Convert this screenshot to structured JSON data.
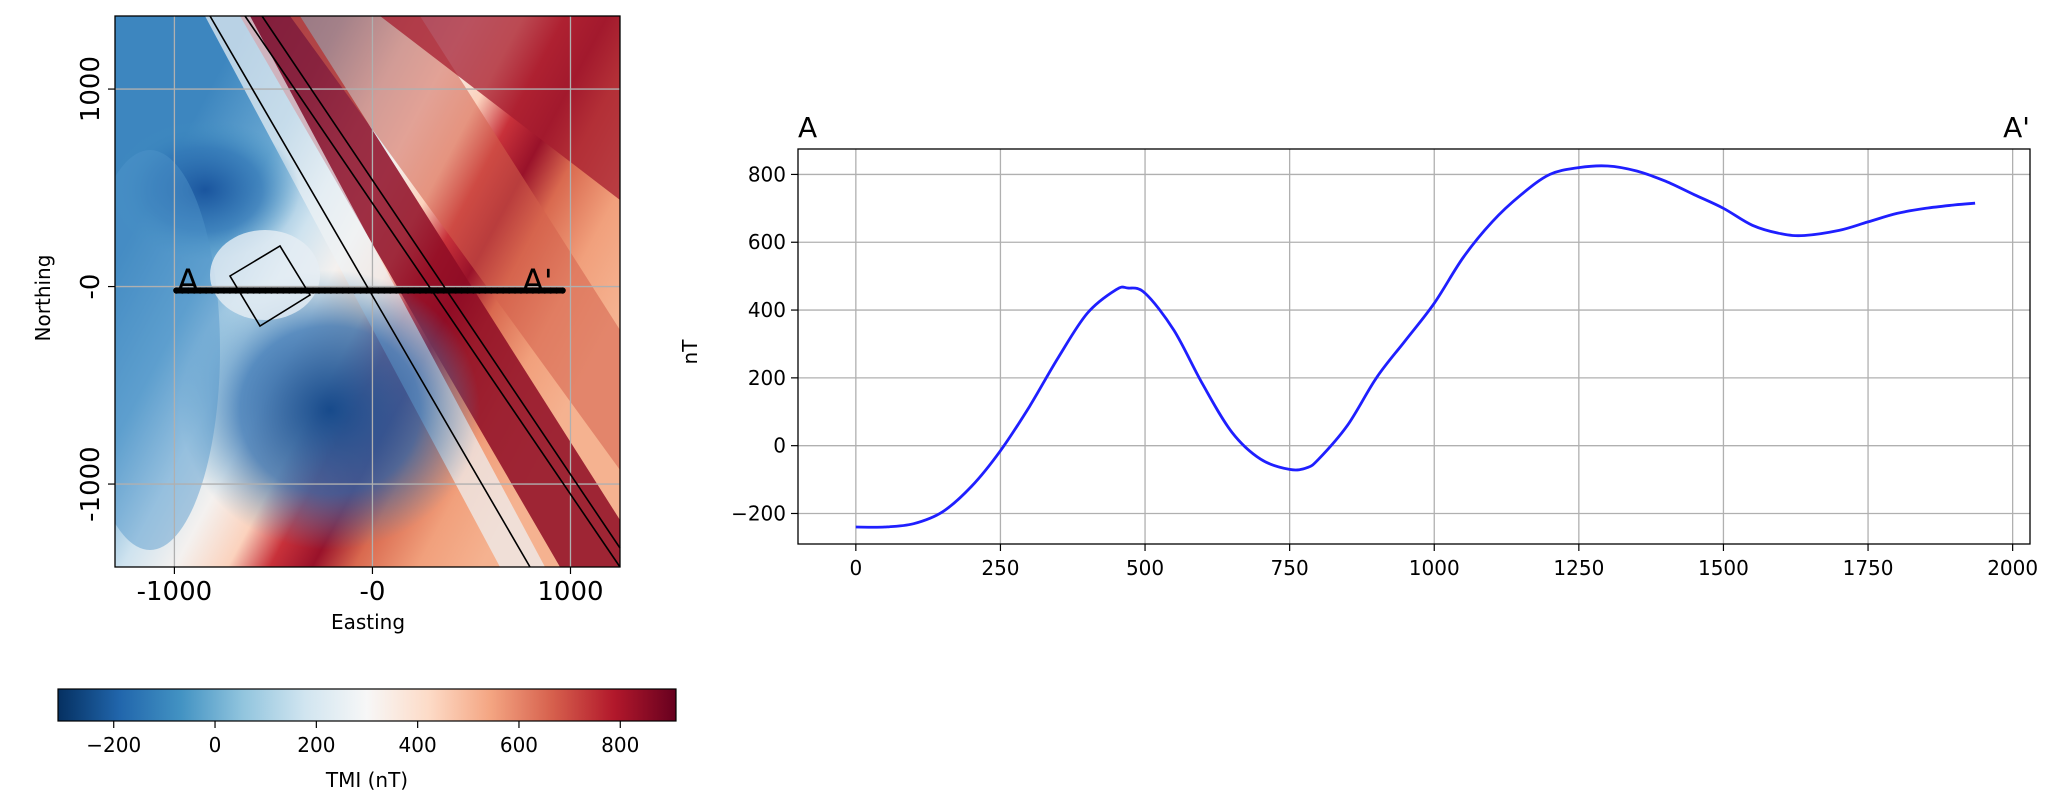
{
  "map": {
    "xlabel": "Easting",
    "ylabel": "Northing",
    "xticks": [
      {
        "value": -1000,
        "label": "-1000"
      },
      {
        "value": 0,
        "label": "-0"
      },
      {
        "value": 1000,
        "label": "1000"
      }
    ],
    "yticks": [
      {
        "value": 1000,
        "label": "1000"
      },
      {
        "value": 0,
        "label": "-0"
      },
      {
        "value": -1000,
        "label": "-1000"
      }
    ],
    "xlim": [
      -1300,
      1250
    ],
    "ylim": [
      -1420,
      1370
    ],
    "profile_start_label": "A",
    "profile_end_label": "A'",
    "profile_line": {
      "x0": -990,
      "x1": 960,
      "y": -20
    },
    "grid": true
  },
  "colorbar": {
    "label": "TMI (nT)",
    "range": [
      -310,
      910
    ],
    "ticks": [
      {
        "value": -200,
        "label": "−200"
      },
      {
        "value": 0,
        "label": "0"
      },
      {
        "value": 200,
        "label": "200"
      },
      {
        "value": 400,
        "label": "400"
      },
      {
        "value": 600,
        "label": "600"
      },
      {
        "value": 800,
        "label": "800"
      }
    ],
    "colormap": "RdBu_r"
  },
  "chart_data": {
    "type": "line",
    "title_left": "A",
    "title_right": "A'",
    "xlabel": "",
    "ylabel": "nT",
    "xlim": [
      -100,
      2030
    ],
    "ylim": [
      -290,
      875
    ],
    "xticks": [
      {
        "value": 0,
        "label": "0"
      },
      {
        "value": 250,
        "label": "250"
      },
      {
        "value": 500,
        "label": "500"
      },
      {
        "value": 750,
        "label": "750"
      },
      {
        "value": 1000,
        "label": "1000"
      },
      {
        "value": 1250,
        "label": "1250"
      },
      {
        "value": 1500,
        "label": "1500"
      },
      {
        "value": 1750,
        "label": "1750"
      },
      {
        "value": 2000,
        "label": "2000"
      }
    ],
    "yticks": [
      {
        "value": -200,
        "label": "−200"
      },
      {
        "value": 0,
        "label": "0"
      },
      {
        "value": 200,
        "label": "200"
      },
      {
        "value": 400,
        "label": "400"
      },
      {
        "value": 600,
        "label": "600"
      },
      {
        "value": 800,
        "label": "800"
      }
    ],
    "grid": true,
    "series": [
      {
        "color": "#1f1fff",
        "x": [
          0,
          50,
          100,
          150,
          200,
          250,
          300,
          350,
          400,
          450,
          470,
          500,
          550,
          600,
          650,
          700,
          750,
          780,
          800,
          850,
          900,
          950,
          1000,
          1050,
          1100,
          1150,
          1200,
          1250,
          1300,
          1350,
          1400,
          1450,
          1500,
          1550,
          1600,
          1640,
          1700,
          1750,
          1800,
          1850,
          1900,
          1935
        ],
        "y": [
          -240,
          -240,
          -230,
          -195,
          -120,
          -15,
          115,
          260,
          390,
          460,
          465,
          450,
          340,
          180,
          40,
          -40,
          -70,
          -65,
          -40,
          60,
          200,
          310,
          420,
          555,
          660,
          740,
          800,
          820,
          825,
          810,
          780,
          740,
          700,
          650,
          625,
          620,
          635,
          660,
          685,
          700,
          710,
          715
        ]
      }
    ]
  }
}
